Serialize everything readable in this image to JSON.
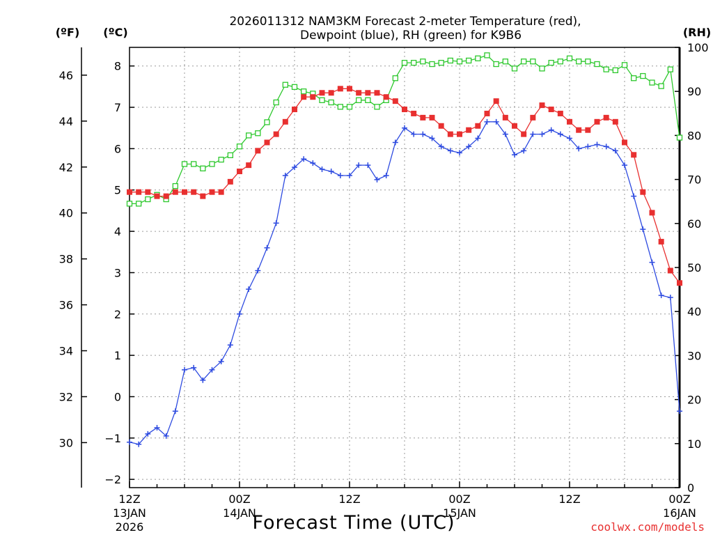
{
  "chart_data": {
    "type": "line",
    "title_line1": "2026011312 NAM3KM Forecast 2-meter Temperature (red),",
    "title_line2": "Dewpoint (blue), RH (green) for K9B6",
    "xlabel": "Forecast Time (UTC)",
    "watermark": "coolwx.com/models",
    "unit_f": "(ºF)",
    "unit_c": "(ºC)",
    "unit_rh": "(RH)",
    "x_hours_range": [
      0,
      60
    ],
    "c_range": [
      -2.2,
      8.45
    ],
    "rh_range": [
      0,
      100
    ],
    "f_ticks": [
      30,
      32,
      34,
      36,
      38,
      40,
      42,
      44,
      46
    ],
    "c_ticks": [
      -2,
      -1,
      0,
      1,
      2,
      3,
      4,
      5,
      6,
      7,
      8
    ],
    "rh_ticks": [
      0,
      10,
      20,
      30,
      40,
      50,
      60,
      70,
      80,
      90,
      100
    ],
    "x_ticks": [
      {
        "hour": 0,
        "line1": "12Z",
        "line2": "13JAN",
        "line3": "2026"
      },
      {
        "hour": 12,
        "line1": "00Z",
        "line2": "14JAN",
        "line3": ""
      },
      {
        "hour": 24,
        "line1": "12Z",
        "line2": "",
        "line3": ""
      },
      {
        "hour": 36,
        "line1": "00Z",
        "line2": "15JAN",
        "line3": ""
      },
      {
        "hour": 48,
        "line1": "12Z",
        "line2": "",
        "line3": ""
      },
      {
        "hour": 60,
        "line1": "00Z",
        "line2": "16JAN",
        "line3": ""
      }
    ],
    "series": [
      {
        "name": "Temperature",
        "color": "#e83030",
        "marker": "filled-square",
        "axis": "celsius",
        "hours": [
          0,
          1,
          2,
          3,
          4,
          5,
          6,
          7,
          8,
          9,
          10,
          11,
          12,
          13,
          14,
          15,
          16,
          17,
          18,
          19,
          20,
          21,
          22,
          23,
          24,
          25,
          26,
          27,
          28,
          29,
          30,
          31,
          32,
          33,
          34,
          35,
          36,
          37,
          38,
          39,
          40,
          41,
          42,
          43,
          44,
          45,
          46,
          47,
          48,
          49,
          50,
          51,
          52,
          53,
          54,
          55,
          56,
          57,
          58,
          59,
          60
        ],
        "values": [
          4.95,
          4.95,
          4.95,
          4.85,
          4.85,
          4.95,
          4.95,
          4.95,
          4.85,
          4.95,
          4.95,
          5.2,
          5.45,
          5.6,
          5.95,
          6.15,
          6.35,
          6.65,
          6.95,
          7.25,
          7.25,
          7.35,
          7.35,
          7.45,
          7.45,
          7.35,
          7.35,
          7.35,
          7.25,
          7.15,
          6.95,
          6.85,
          6.75,
          6.75,
          6.55,
          6.35,
          6.35,
          6.45,
          6.55,
          6.85,
          7.15,
          6.75,
          6.55,
          6.35,
          6.75,
          7.05,
          6.95,
          6.85,
          6.65,
          6.45,
          6.45,
          6.65,
          6.75,
          6.65,
          6.15,
          5.85,
          4.95,
          4.45,
          3.75,
          3.05,
          2.75
        ]
      },
      {
        "name": "Dewpoint",
        "color": "#2d4ae0",
        "marker": "plus",
        "axis": "celsius",
        "hours": [
          0,
          1,
          2,
          3,
          4,
          5,
          6,
          7,
          8,
          9,
          10,
          11,
          12,
          13,
          14,
          15,
          16,
          17,
          18,
          19,
          20,
          21,
          22,
          23,
          24,
          25,
          26,
          27,
          28,
          29,
          30,
          31,
          32,
          33,
          34,
          35,
          36,
          37,
          38,
          39,
          40,
          41,
          42,
          43,
          44,
          45,
          46,
          47,
          48,
          49,
          50,
          51,
          52,
          53,
          54,
          55,
          56,
          57,
          58,
          59,
          60
        ],
        "values": [
          -1.1,
          -1.15,
          -0.9,
          -0.75,
          -0.95,
          -0.35,
          0.65,
          0.7,
          0.4,
          0.65,
          0.85,
          1.25,
          2.0,
          2.6,
          3.05,
          3.6,
          4.2,
          5.35,
          5.55,
          5.75,
          5.65,
          5.5,
          5.45,
          5.35,
          5.35,
          5.6,
          5.6,
          5.25,
          5.35,
          6.15,
          6.5,
          6.35,
          6.35,
          6.25,
          6.05,
          5.95,
          5.9,
          6.05,
          6.25,
          6.65,
          6.65,
          6.35,
          5.85,
          5.95,
          6.35,
          6.35,
          6.45,
          6.35,
          6.25,
          6.0,
          6.05,
          6.1,
          6.05,
          5.95,
          5.6,
          4.85,
          4.05,
          3.25,
          2.45,
          2.4,
          -0.35
        ]
      },
      {
        "name": "RH",
        "color": "#2dc82d",
        "marker": "open-square",
        "axis": "rh",
        "hours": [
          0,
          1,
          2,
          3,
          4,
          5,
          6,
          7,
          8,
          9,
          10,
          11,
          12,
          13,
          14,
          15,
          16,
          17,
          18,
          19,
          20,
          21,
          22,
          23,
          24,
          25,
          26,
          27,
          28,
          29,
          30,
          31,
          32,
          33,
          34,
          35,
          36,
          37,
          38,
          39,
          40,
          41,
          42,
          43,
          44,
          45,
          46,
          47,
          48,
          49,
          50,
          51,
          52,
          53,
          54,
          55,
          56,
          57,
          58,
          59,
          60
        ],
        "values": [
          64.5,
          64.5,
          65.5,
          66.5,
          65.5,
          68.5,
          73.5,
          73.5,
          72.5,
          73.5,
          74.5,
          75.5,
          77.5,
          80,
          80.5,
          83,
          87.5,
          91.5,
          91,
          90,
          89.5,
          88,
          87.5,
          86.5,
          86.5,
          88,
          88,
          86.5,
          88,
          93,
          96.5,
          96.5,
          96.8,
          96.2,
          96.5,
          97,
          96.8,
          97,
          97.5,
          98.2,
          96.2,
          96.8,
          95.2,
          96.8,
          96.8,
          95.2,
          96.5,
          96.8,
          97.5,
          96.8,
          96.8,
          96.2,
          95,
          94.8,
          96,
          93,
          93.5,
          92,
          91.2,
          95,
          79.5
        ]
      }
    ]
  }
}
